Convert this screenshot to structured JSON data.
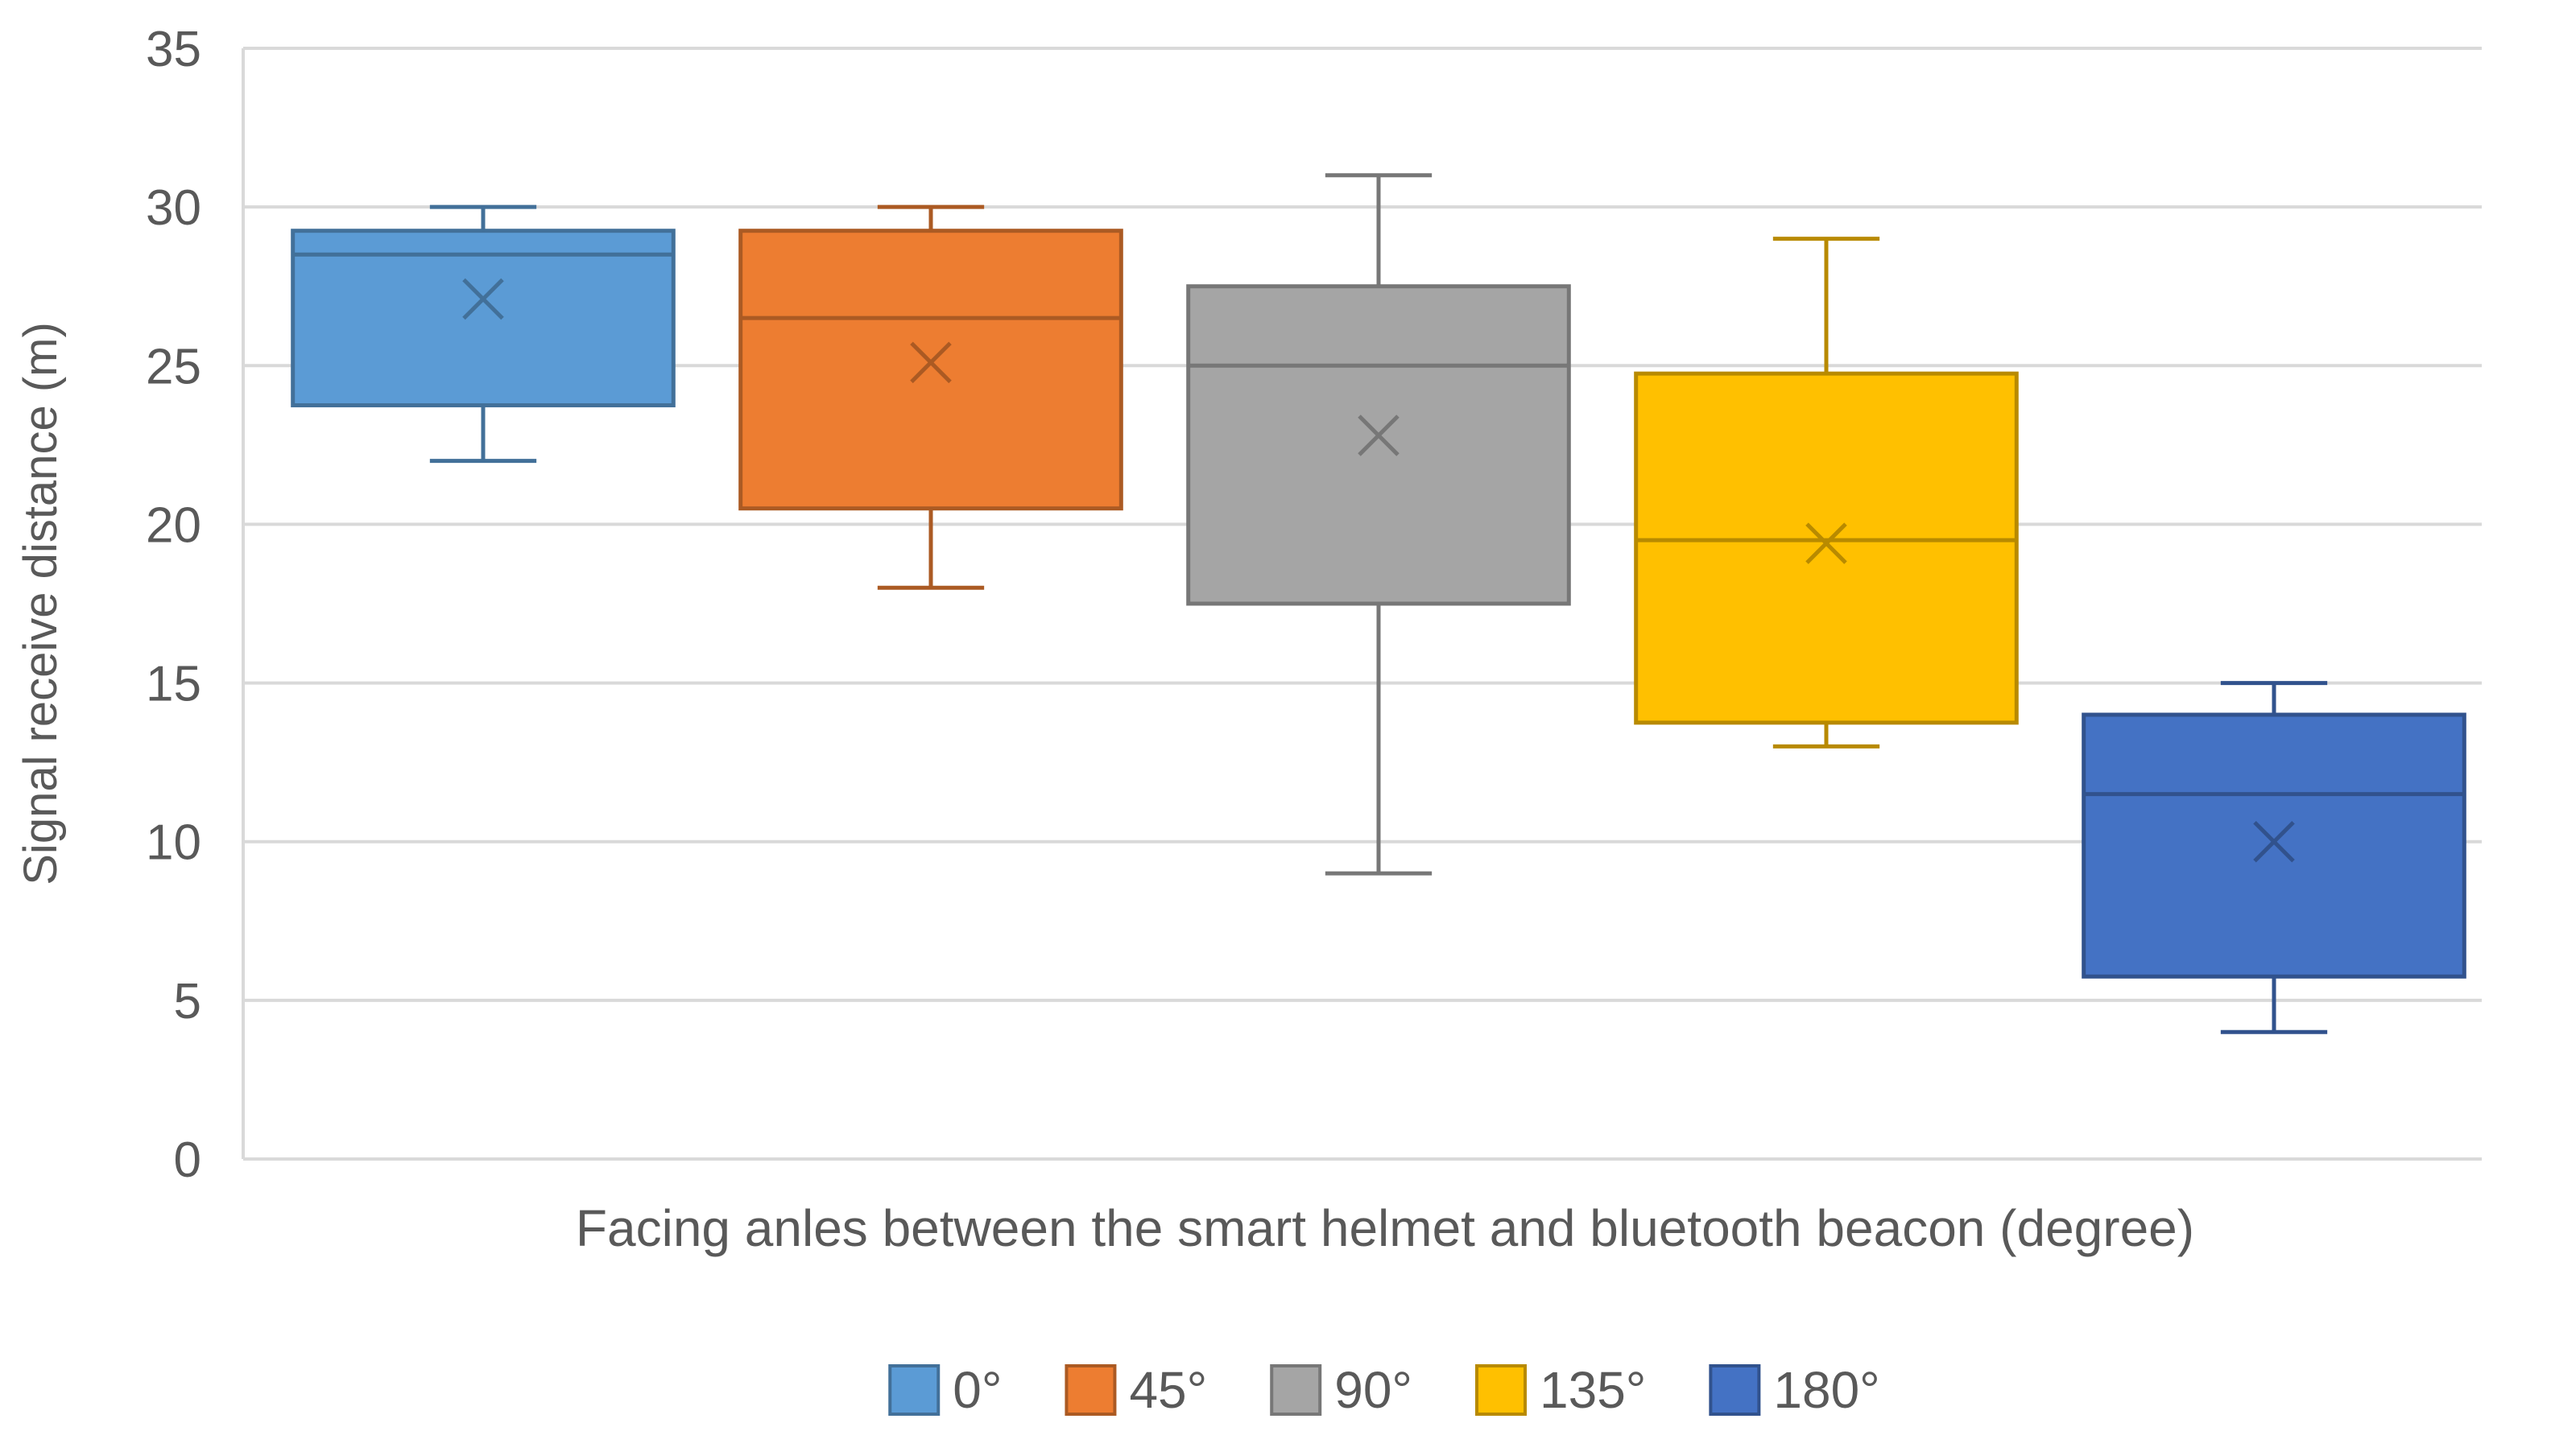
{
  "chart_data": {
    "type": "box",
    "title": "",
    "xlabel": "Facing anles between the smart helmet and bluetooth beacon (degree)",
    "ylabel": "Signal receive distance (m)",
    "ylim": [
      0,
      35
    ],
    "yticks": [
      0,
      5,
      10,
      15,
      20,
      25,
      30,
      35
    ],
    "grid": true,
    "legend_position": "bottom",
    "series": [
      {
        "name": "0°",
        "color": "#5B9BD5",
        "whisker_low": 22,
        "q1": 23.75,
        "median": 28.5,
        "q3": 29.25,
        "whisker_high": 30,
        "mean": 27.1
      },
      {
        "name": "45°",
        "color": "#ED7D31",
        "whisker_low": 18,
        "q1": 20.5,
        "median": 26.5,
        "q3": 29.25,
        "whisker_high": 30,
        "mean": 25.1
      },
      {
        "name": "90°",
        "color": "#A5A5A5",
        "whisker_low": 9,
        "q1": 17.5,
        "median": 25,
        "q3": 27.5,
        "whisker_high": 31,
        "mean": 22.8
      },
      {
        "name": "135°",
        "color": "#FFC000",
        "whisker_low": 13,
        "q1": 13.75,
        "median": 19.5,
        "q3": 24.75,
        "whisker_high": 29,
        "mean": 19.4
      },
      {
        "name": "180°",
        "color": "#4472C4",
        "whisker_low": 4,
        "q1": 5.75,
        "median": 11.5,
        "q3": 14,
        "whisker_high": 15,
        "mean": 10
      }
    ]
  }
}
